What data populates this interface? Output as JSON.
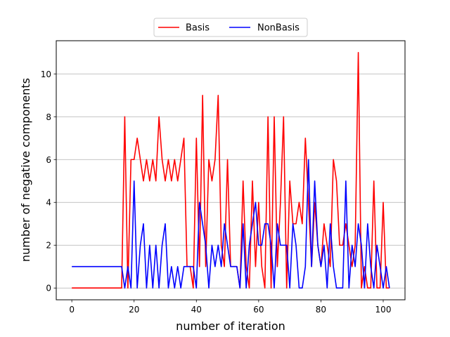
{
  "chart_data": {
    "type": "line",
    "title": "",
    "xlabel": "number of iteration",
    "ylabel": "number of negative components",
    "xlim": [
      -5,
      107
    ],
    "ylim": [
      -0.55,
      11.55
    ],
    "xticks": [
      0,
      20,
      40,
      60,
      80,
      100
    ],
    "yticks": [
      0,
      2,
      4,
      6,
      8,
      10
    ],
    "grid": "y-major",
    "legend": "top-center",
    "series": [
      {
        "name": "Basis",
        "color": "#ff0000",
        "x": [
          0,
          1,
          2,
          3,
          4,
          5,
          6,
          7,
          8,
          9,
          10,
          11,
          12,
          13,
          14,
          15,
          16,
          17,
          18,
          19,
          20,
          21,
          22,
          23,
          24,
          25,
          26,
          27,
          28,
          29,
          30,
          31,
          32,
          33,
          34,
          35,
          36,
          37,
          38,
          39,
          40,
          41,
          42,
          43,
          44,
          45,
          46,
          47,
          48,
          49,
          50,
          51,
          52,
          53,
          54,
          55,
          56,
          57,
          58,
          59,
          60,
          61,
          62,
          63,
          64,
          65,
          66,
          67,
          68,
          69,
          70,
          71,
          72,
          73,
          74,
          75,
          76,
          77,
          78,
          79,
          80,
          81,
          82,
          83,
          84,
          85,
          86,
          87,
          88,
          89,
          90,
          91,
          92,
          93,
          94,
          95,
          96,
          97,
          98,
          99,
          100,
          101,
          102
        ],
        "y": [
          0,
          0,
          0,
          0,
          0,
          0,
          0,
          0,
          0,
          0,
          0,
          0,
          0,
          0,
          0,
          0,
          0,
          8,
          0,
          6,
          6,
          7,
          6,
          5,
          6,
          5,
          6,
          5,
          8,
          6,
          5,
          6,
          5,
          6,
          5,
          6,
          7,
          1,
          1,
          0,
          7,
          1,
          9,
          1,
          6,
          5,
          6,
          9,
          2,
          1,
          6,
          1,
          1,
          1,
          0,
          5,
          1,
          0,
          5,
          1,
          4,
          1,
          0,
          8,
          0,
          8,
          1,
          4,
          8,
          0,
          5,
          3,
          3,
          4,
          3,
          7,
          4,
          1,
          4,
          2,
          1,
          3,
          2,
          1,
          6,
          5,
          2,
          2,
          3,
          2,
          1,
          2,
          11,
          0,
          1,
          0,
          0,
          5,
          0,
          0,
          4,
          0,
          0
        ]
      },
      {
        "name": "NonBasis",
        "color": "#0000ff",
        "x": [
          0,
          1,
          2,
          3,
          4,
          5,
          6,
          7,
          8,
          9,
          10,
          11,
          12,
          13,
          14,
          15,
          16,
          17,
          18,
          19,
          20,
          21,
          22,
          23,
          24,
          25,
          26,
          27,
          28,
          29,
          30,
          31,
          32,
          33,
          34,
          35,
          36,
          37,
          38,
          39,
          40,
          41,
          42,
          43,
          44,
          45,
          46,
          47,
          48,
          49,
          50,
          51,
          52,
          53,
          54,
          55,
          56,
          57,
          58,
          59,
          60,
          61,
          62,
          63,
          64,
          65,
          66,
          67,
          68,
          69,
          70,
          71,
          72,
          73,
          74,
          75,
          76,
          77,
          78,
          79,
          80,
          81,
          82,
          83,
          84,
          85,
          86,
          87,
          88,
          89,
          90,
          91,
          92,
          93,
          94,
          95,
          96,
          97,
          98,
          99,
          100,
          101,
          102
        ],
        "y": [
          1,
          1,
          1,
          1,
          1,
          1,
          1,
          1,
          1,
          1,
          1,
          1,
          1,
          1,
          1,
          1,
          1,
          0,
          1,
          0,
          5,
          0,
          2,
          3,
          0,
          2,
          0,
          2,
          0,
          2,
          3,
          0,
          1,
          0,
          1,
          0,
          1,
          1,
          1,
          1,
          0,
          4,
          3,
          2,
          0,
          2,
          1,
          2,
          1,
          3,
          2,
          1,
          1,
          1,
          0,
          3,
          0,
          2,
          3,
          4,
          2,
          2,
          3,
          3,
          2,
          0,
          3,
          2,
          2,
          2,
          0,
          3,
          2,
          0,
          0,
          1,
          6,
          1,
          5,
          2,
          1,
          2,
          0,
          3,
          1,
          0,
          0,
          0,
          5,
          0,
          2,
          1,
          3,
          2,
          0,
          3,
          1,
          0,
          2,
          1,
          0,
          1,
          0
        ]
      }
    ]
  }
}
